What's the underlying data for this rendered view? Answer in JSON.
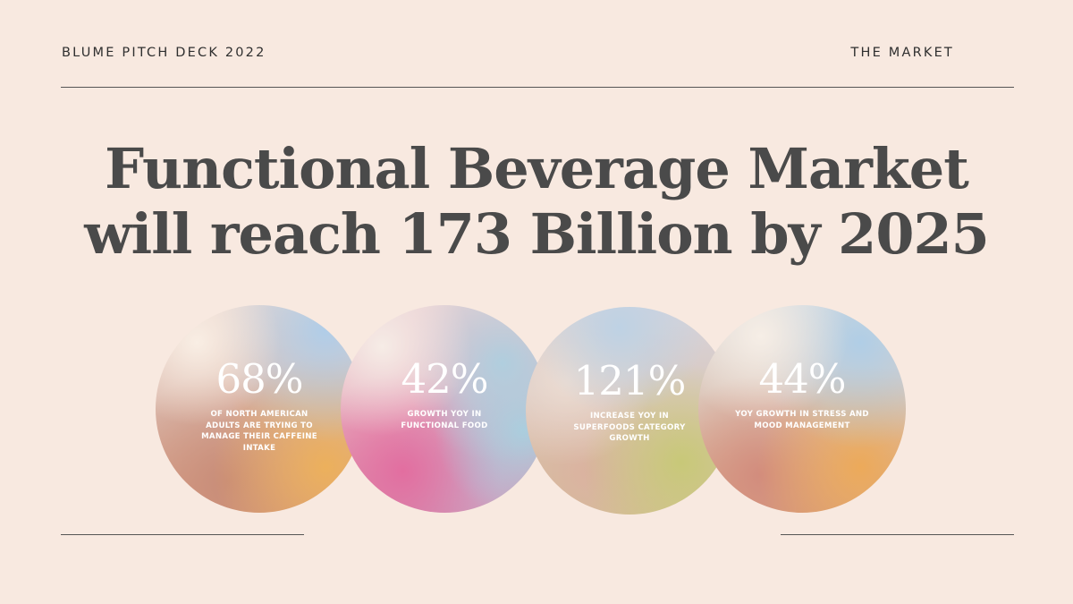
{
  "header": {
    "left": "BLUME PITCH DECK 2022",
    "right": "THE MARKET"
  },
  "headline": {
    "line1": "Functional Beverage Market",
    "line2": "will reach 173 Billion by 2025"
  },
  "stats": [
    {
      "value": "68%",
      "description": "OF NORTH AMERICAN ADULTS ARE TRYING TO MANAGE THEIR CAFFEINE INTAKE"
    },
    {
      "value": "42%",
      "description": "GROWTH YOY IN FUNCTIONAL FOOD"
    },
    {
      "value": "121%",
      "description": "INCREASE YOY IN SUPERFOODS CATEGORY GROWTH"
    },
    {
      "value": "44%",
      "description": "YOY GROWTH IN STRESS AND MOOD MANAGEMENT"
    }
  ],
  "colors": {
    "background": "#f8e9e0",
    "headline": "#4a4a4a",
    "rule": "#555555",
    "stat_text": "#ffffff"
  }
}
